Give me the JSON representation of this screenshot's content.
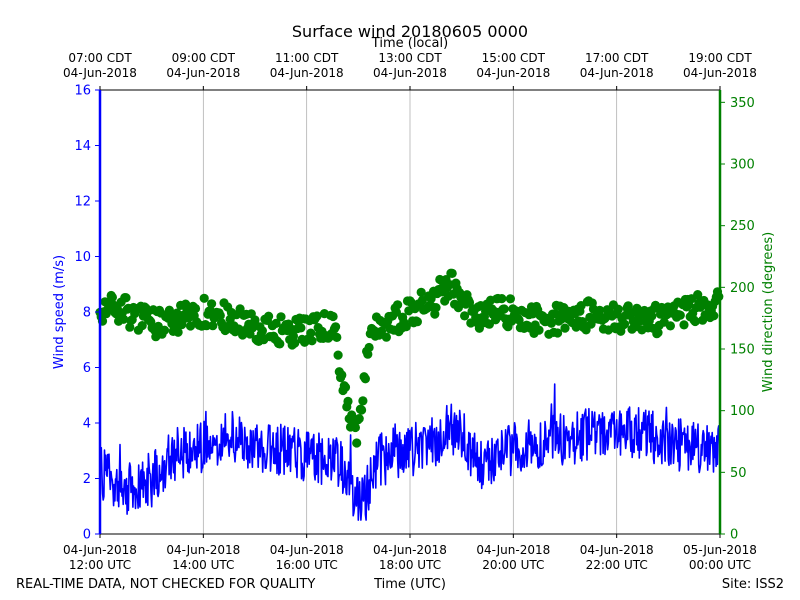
{
  "chart_data": {
    "type": "line",
    "title": "Surface wind 20180605 0000",
    "top_axis_label": "Time (local)",
    "xlabel": "Time (UTC)",
    "ylabel_left": "Wind speed (m/s)",
    "ylabel_right": "Wind direction (degrees)",
    "footer_left": "REAL-TIME DATA, NOT CHECKED FOR QUALITY",
    "footer_right": "Site: ISS2",
    "x_range_hours": [
      12,
      24
    ],
    "ylim_left": [
      0,
      16
    ],
    "ylim_right": [
      0,
      360
    ],
    "grid": "vertical",
    "colors": {
      "speed": "#0000ff",
      "direction": "#008000",
      "grid": "#b0b0b0",
      "axis": "#000000"
    },
    "left_ticks": [
      "0",
      "2",
      "4",
      "6",
      "8",
      "10",
      "12",
      "14",
      "16"
    ],
    "right_ticks": [
      "0",
      "50",
      "100",
      "150",
      "200",
      "250",
      "300",
      "350"
    ],
    "bottom_ticks": [
      {
        "hour": 12,
        "line1": "04-Jun-2018",
        "line2": "12:00 UTC"
      },
      {
        "hour": 14,
        "line1": "04-Jun-2018",
        "line2": "14:00 UTC"
      },
      {
        "hour": 16,
        "line1": "04-Jun-2018",
        "line2": "16:00 UTC"
      },
      {
        "hour": 18,
        "line1": "04-Jun-2018",
        "line2": "18:00 UTC"
      },
      {
        "hour": 20,
        "line1": "04-Jun-2018",
        "line2": "20:00 UTC"
      },
      {
        "hour": 22,
        "line1": "04-Jun-2018",
        "line2": "22:00 UTC"
      },
      {
        "hour": 24,
        "line1": "05-Jun-2018",
        "line2": "00:00 UTC"
      }
    ],
    "top_ticks": [
      {
        "hour": 12,
        "line1": "07:00 CDT",
        "line2": "04-Jun-2018"
      },
      {
        "hour": 14,
        "line1": "09:00 CDT",
        "line2": "04-Jun-2018"
      },
      {
        "hour": 16,
        "line1": "11:00 CDT",
        "line2": "04-Jun-2018"
      },
      {
        "hour": 18,
        "line1": "13:00 CDT",
        "line2": "04-Jun-2018"
      },
      {
        "hour": 20,
        "line1": "15:00 CDT",
        "line2": "04-Jun-2018"
      },
      {
        "hour": 22,
        "line1": "17:00 CDT",
        "line2": "04-Jun-2018"
      },
      {
        "hour": 24,
        "line1": "19:00 CDT",
        "line2": "04-Jun-2018"
      }
    ],
    "series": [
      {
        "name": "Wind speed (m/s)",
        "axis": "left",
        "style": "line",
        "x_hours": [
          12.0,
          12.5,
          13.0,
          13.25,
          13.5,
          14.0,
          14.5,
          15.0,
          15.5,
          16.0,
          16.5,
          16.7,
          16.85,
          17.0,
          17.15,
          17.3,
          17.5,
          18.0,
          18.5,
          18.75,
          19.0,
          19.25,
          19.5,
          20.0,
          20.5,
          21.0,
          21.5,
          22.0,
          22.5,
          23.0,
          23.5,
          24.0
        ],
        "values": [
          2.2,
          1.6,
          2.0,
          2.5,
          2.9,
          3.1,
          3.5,
          3.2,
          3.0,
          2.8,
          2.7,
          2.4,
          1.5,
          1.2,
          1.4,
          2.4,
          2.8,
          3.0,
          3.3,
          3.9,
          3.6,
          2.7,
          2.5,
          3.1,
          3.3,
          3.4,
          3.6,
          3.7,
          3.6,
          3.3,
          3.1,
          3.0
        ]
      },
      {
        "name": "Wind direction (degrees)",
        "axis": "right",
        "style": "scatter",
        "x_hours": [
          12.0,
          12.5,
          13.0,
          13.5,
          14.0,
          14.5,
          15.0,
          15.5,
          16.0,
          16.5,
          16.65,
          16.75,
          16.85,
          16.95,
          17.05,
          17.2,
          17.35,
          17.5,
          18.0,
          18.5,
          18.75,
          19.0,
          19.25,
          19.5,
          20.0,
          20.5,
          21.0,
          21.5,
          22.0,
          22.5,
          23.0,
          23.5,
          24.0
        ],
        "values": [
          185,
          180,
          170,
          175,
          180,
          175,
          168,
          165,
          165,
          170,
          140,
          118,
          90,
          75,
          92,
          158,
          165,
          168,
          180,
          190,
          205,
          190,
          178,
          180,
          180,
          172,
          175,
          178,
          175,
          172,
          175,
          182,
          190
        ]
      }
    ]
  }
}
